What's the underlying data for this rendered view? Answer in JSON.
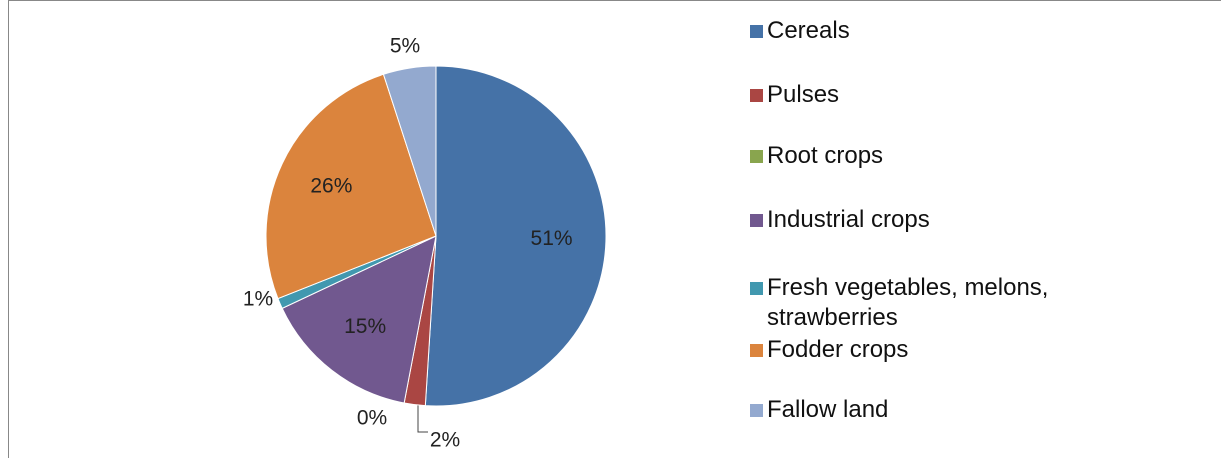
{
  "chart_data": {
    "type": "pie",
    "categories": [
      "Cereals",
      "Pulses",
      "Root crops",
      "Industrial crops",
      "Fresh vegetables, melons, strawberries",
      "Fodder crops",
      "Fallow land"
    ],
    "values": [
      51,
      2,
      0,
      15,
      1,
      26,
      5
    ],
    "colors": [
      "#4572a7",
      "#aa4643",
      "#89a54e",
      "#71588f",
      "#4198af",
      "#db843d",
      "#93a9cf"
    ],
    "legend": "right"
  }
}
